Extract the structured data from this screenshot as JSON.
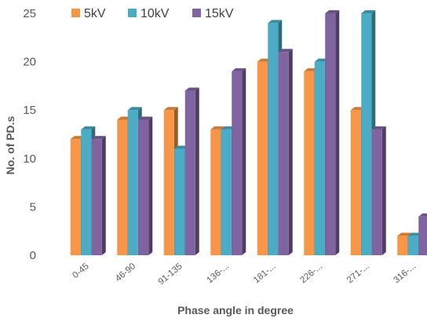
{
  "chart_data": {
    "type": "bar",
    "style": "3d-clustered-column",
    "categories": [
      "0-45",
      "46-90",
      "91-135",
      "136-...",
      "181-...",
      "226-...",
      "271-...",
      "316-..."
    ],
    "series": [
      {
        "name": "5kV",
        "color": "#F79646",
        "values": [
          12,
          14,
          15,
          13,
          20,
          19,
          15,
          2
        ]
      },
      {
        "name": "10kV",
        "color": "#4BACC6",
        "values": [
          13,
          15,
          11,
          13,
          24,
          20,
          25,
          2
        ]
      },
      {
        "name": "15kV",
        "color": "#8064A2",
        "values": [
          12,
          14,
          17,
          19,
          21,
          25,
          13,
          4
        ]
      }
    ],
    "xlabel": "Phase angle in degree",
    "ylabel": "No. of PD.s",
    "ylim": [
      0,
      25
    ],
    "yticks": [
      0,
      5,
      10,
      15,
      20,
      25
    ],
    "grid": false,
    "legend_position": "top"
  }
}
